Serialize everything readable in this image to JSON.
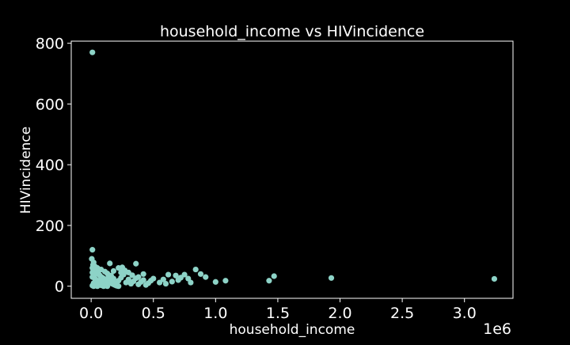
{
  "colors": {
    "background": "#000000",
    "foreground": "#ffffff",
    "marker": "#8dd3c7"
  },
  "chart_data": {
    "type": "scatter",
    "title": "household_income vs HIVincidence",
    "xlabel": "household_income",
    "ylabel": "HIVincidence",
    "x_offset_label": "1e6",
    "xlim": [
      -0.16,
      3.39
    ],
    "ylim": [
      -40,
      807
    ],
    "xticks": [
      0.0,
      0.5,
      1.0,
      1.5,
      2.0,
      2.5,
      3.0
    ],
    "xtick_labels": [
      "0.0",
      "0.5",
      "1.0",
      "1.5",
      "2.0",
      "2.5",
      "3.0"
    ],
    "yticks": [
      0,
      200,
      400,
      600,
      800
    ],
    "ytick_labels": [
      "0",
      "200",
      "400",
      "600",
      "800"
    ],
    "grid": false,
    "legend": "none",
    "x_unit_note": "x values in units of 1e6",
    "points": [
      [
        0.01,
        770
      ],
      [
        0.01,
        120
      ],
      [
        0.005,
        90
      ],
      [
        0.02,
        78
      ],
      [
        0.015,
        70
      ],
      [
        0.03,
        65
      ],
      [
        0.01,
        60
      ],
      [
        0.02,
        55
      ],
      [
        0.04,
        50
      ],
      [
        0.05,
        45
      ],
      [
        0.06,
        40
      ],
      [
        0.03,
        38
      ],
      [
        0.07,
        35
      ],
      [
        0.08,
        30
      ],
      [
        0.09,
        28
      ],
      [
        0.1,
        25
      ],
      [
        0.11,
        22
      ],
      [
        0.12,
        20
      ],
      [
        0.13,
        18
      ],
      [
        0.14,
        15
      ],
      [
        0.15,
        12
      ],
      [
        0.16,
        10
      ],
      [
        0.17,
        8
      ],
      [
        0.18,
        6
      ],
      [
        0.19,
        4
      ],
      [
        0.2,
        2
      ],
      [
        0.21,
        1
      ],
      [
        0.22,
        0
      ],
      [
        0.02,
        10
      ],
      [
        0.03,
        5
      ],
      [
        0.04,
        2
      ],
      [
        0.05,
        0
      ],
      [
        0.06,
        8
      ],
      [
        0.07,
        12
      ],
      [
        0.08,
        3
      ],
      [
        0.09,
        15
      ],
      [
        0.1,
        0
      ],
      [
        0.12,
        6
      ],
      [
        0.14,
        30
      ],
      [
        0.16,
        35
      ],
      [
        0.18,
        25
      ],
      [
        0.2,
        10
      ],
      [
        0.22,
        18
      ],
      [
        0.24,
        28
      ],
      [
        0.26,
        38
      ],
      [
        0.28,
        12
      ],
      [
        0.3,
        22
      ],
      [
        0.32,
        8
      ],
      [
        0.34,
        16
      ],
      [
        0.36,
        26
      ],
      [
        0.38,
        6
      ],
      [
        0.4,
        14
      ],
      [
        0.42,
        20
      ],
      [
        0.44,
        4
      ],
      [
        0.46,
        10
      ],
      [
        0.48,
        18
      ],
      [
        0.15,
        75
      ],
      [
        0.22,
        60
      ],
      [
        0.25,
        62
      ],
      [
        0.3,
        45
      ],
      [
        0.36,
        74
      ],
      [
        0.38,
        30
      ],
      [
        0.42,
        40
      ],
      [
        0.5,
        25
      ],
      [
        0.55,
        12
      ],
      [
        0.58,
        22
      ],
      [
        0.6,
        8
      ],
      [
        0.62,
        38
      ],
      [
        0.65,
        15
      ],
      [
        0.68,
        35
      ],
      [
        0.7,
        20
      ],
      [
        0.72,
        28
      ],
      [
        0.75,
        38
      ],
      [
        0.78,
        25
      ],
      [
        0.8,
        12
      ],
      [
        0.84,
        55
      ],
      [
        0.88,
        40
      ],
      [
        0.92,
        30
      ],
      [
        1.0,
        14
      ],
      [
        1.08,
        18
      ],
      [
        1.43,
        18
      ],
      [
        1.47,
        33
      ],
      [
        1.93,
        27
      ],
      [
        3.24,
        24
      ],
      [
        0.05,
        60
      ],
      [
        0.08,
        55
      ],
      [
        0.11,
        48
      ],
      [
        0.13,
        42
      ],
      [
        0.18,
        50
      ],
      [
        0.24,
        45
      ],
      [
        0.27,
        52
      ],
      [
        0.33,
        36
      ],
      [
        0.01,
        2
      ],
      [
        0.02,
        0
      ],
      [
        0.03,
        12
      ],
      [
        0.04,
        20
      ],
      [
        0.01,
        30
      ],
      [
        0.02,
        40
      ],
      [
        0.01,
        45
      ],
      [
        0.03,
        25
      ],
      [
        0.06,
        18
      ],
      [
        0.09,
        10
      ],
      [
        0.11,
        5
      ],
      [
        0.13,
        0
      ],
      [
        0.17,
        20
      ]
    ]
  }
}
